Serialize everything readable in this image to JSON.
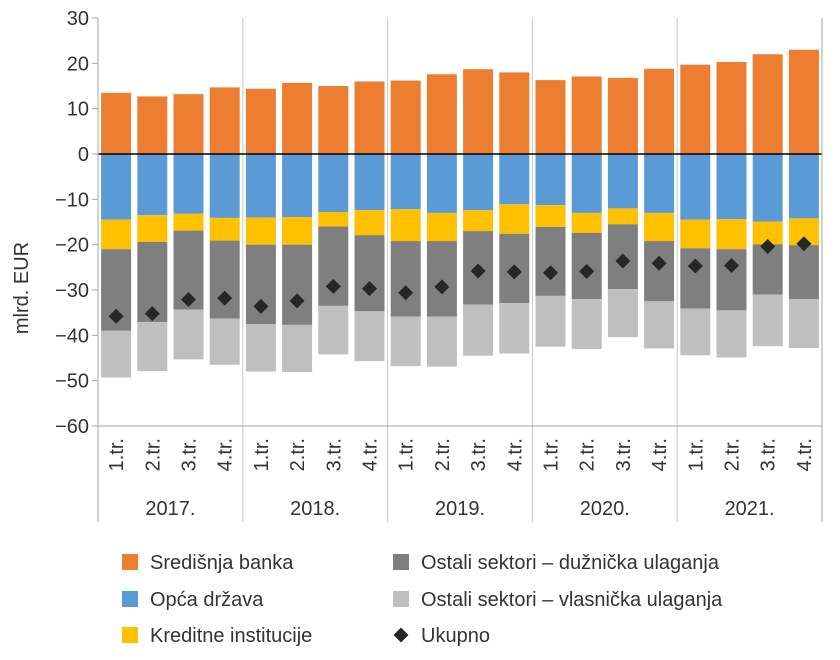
{
  "chart_data": {
    "type": "bar",
    "stacked": true,
    "ylabel": "mlrd. EUR",
    "ylim": [
      -60,
      30
    ],
    "yticks": [
      30,
      20,
      10,
      0,
      -10,
      -20,
      -30,
      -40,
      -50,
      -60
    ],
    "grid": "vertical separators between years",
    "legend_position": "bottom",
    "groups": [
      {
        "label": "2017.",
        "quarters": [
          "1.tr.",
          "2.tr.",
          "3.tr.",
          "4.tr."
        ]
      },
      {
        "label": "2018.",
        "quarters": [
          "1.tr.",
          "2.tr.",
          "3.tr.",
          "4.tr."
        ]
      },
      {
        "label": "2019.",
        "quarters": [
          "1.tr.",
          "2.tr.",
          "3.tr.",
          "4.tr."
        ]
      },
      {
        "label": "2020.",
        "quarters": [
          "1.tr.",
          "2.tr.",
          "3.tr.",
          "4.tr."
        ]
      },
      {
        "label": "2021.",
        "quarters": [
          "1.tr.",
          "2.tr.",
          "3.tr.",
          "4.tr."
        ]
      }
    ],
    "series": [
      {
        "name": "Središnja banka",
        "color": "#ED7D31",
        "kind": "bar",
        "values": [
          13.5,
          12.7,
          13.2,
          14.7,
          14.4,
          15.7,
          15.0,
          16.0,
          16.2,
          17.6,
          18.7,
          18.0,
          16.3,
          17.1,
          16.8,
          18.8,
          19.7,
          20.3,
          22.0,
          23.0
        ]
      },
      {
        "name": "Opća država",
        "color": "#5B9BD5",
        "kind": "bar",
        "values": [
          -14.5,
          -13.5,
          -13.2,
          -14.1,
          -14.0,
          -13.9,
          -12.8,
          -12.4,
          -12.2,
          -13.0,
          -12.4,
          -11.1,
          -11.3,
          -13.0,
          -12.0,
          -13.0,
          -14.5,
          -14.4,
          -14.9,
          -14.2
        ]
      },
      {
        "name": "Kreditne institucije",
        "color": "#FFC000",
        "kind": "bar",
        "values": [
          -6.5,
          -5.9,
          -3.7,
          -5.0,
          -6.0,
          -6.1,
          -3.2,
          -5.5,
          -7.0,
          -6.2,
          -4.6,
          -6.5,
          -4.8,
          -4.4,
          -3.5,
          -6.2,
          -6.3,
          -6.6,
          -5.0,
          -5.9
        ]
      },
      {
        "name": "Ostali sektori – dužnička ulaganja",
        "color": "#7F7F7F",
        "kind": "bar",
        "values": [
          -18.0,
          -17.7,
          -17.4,
          -17.2,
          -17.5,
          -17.7,
          -17.5,
          -16.8,
          -16.7,
          -16.7,
          -16.2,
          -15.3,
          -15.2,
          -14.6,
          -14.3,
          -13.3,
          -13.3,
          -13.5,
          -11.1,
          -11.9
        ]
      },
      {
        "name": "Ostali sektori – vlasnička ulaganja",
        "color": "#BFBFBF",
        "kind": "bar",
        "values": [
          -10.3,
          -10.8,
          -11.0,
          -10.2,
          -10.5,
          -10.4,
          -10.7,
          -11.0,
          -10.9,
          -11.0,
          -11.3,
          -11.1,
          -11.2,
          -11.0,
          -10.6,
          -10.4,
          -10.3,
          -10.4,
          -11.4,
          -10.8
        ]
      },
      {
        "name": "Ukupno",
        "color": "#262626",
        "kind": "marker",
        "values": [
          -35.8,
          -35.2,
          -32.1,
          -31.8,
          -33.6,
          -32.4,
          -29.2,
          -29.7,
          -30.6,
          -29.3,
          -25.8,
          -26.0,
          -26.2,
          -25.9,
          -23.6,
          -24.1,
          -24.7,
          -24.6,
          -20.4,
          -19.8
        ]
      }
    ]
  }
}
